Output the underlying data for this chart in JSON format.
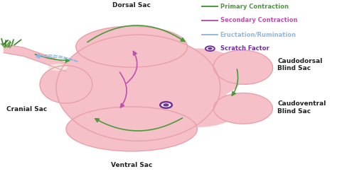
{
  "rumen_color": "#f5c0c8",
  "rumen_edge": "#e8a0aa",
  "legend": {
    "primary": {
      "label": "Primary Contraction",
      "color": "#4a9a3a"
    },
    "secondary": {
      "label": "Secondary Contraction",
      "color": "#c050b0"
    },
    "eructation": {
      "label": "Eructation/Rumination",
      "color": "#90b8e0"
    },
    "scratch": {
      "label": "Scratch Factor",
      "color": "#7030a0"
    }
  },
  "labels": {
    "dorsal_sac": "Dorsal Sac",
    "ventral_sac": "Ventral Sac",
    "cranial_sac": "Cranial Sac",
    "caudodorsal": "Caudodorsal\nBlind Sac",
    "caudoventral": "Caudoventral\nBlind Sac"
  }
}
